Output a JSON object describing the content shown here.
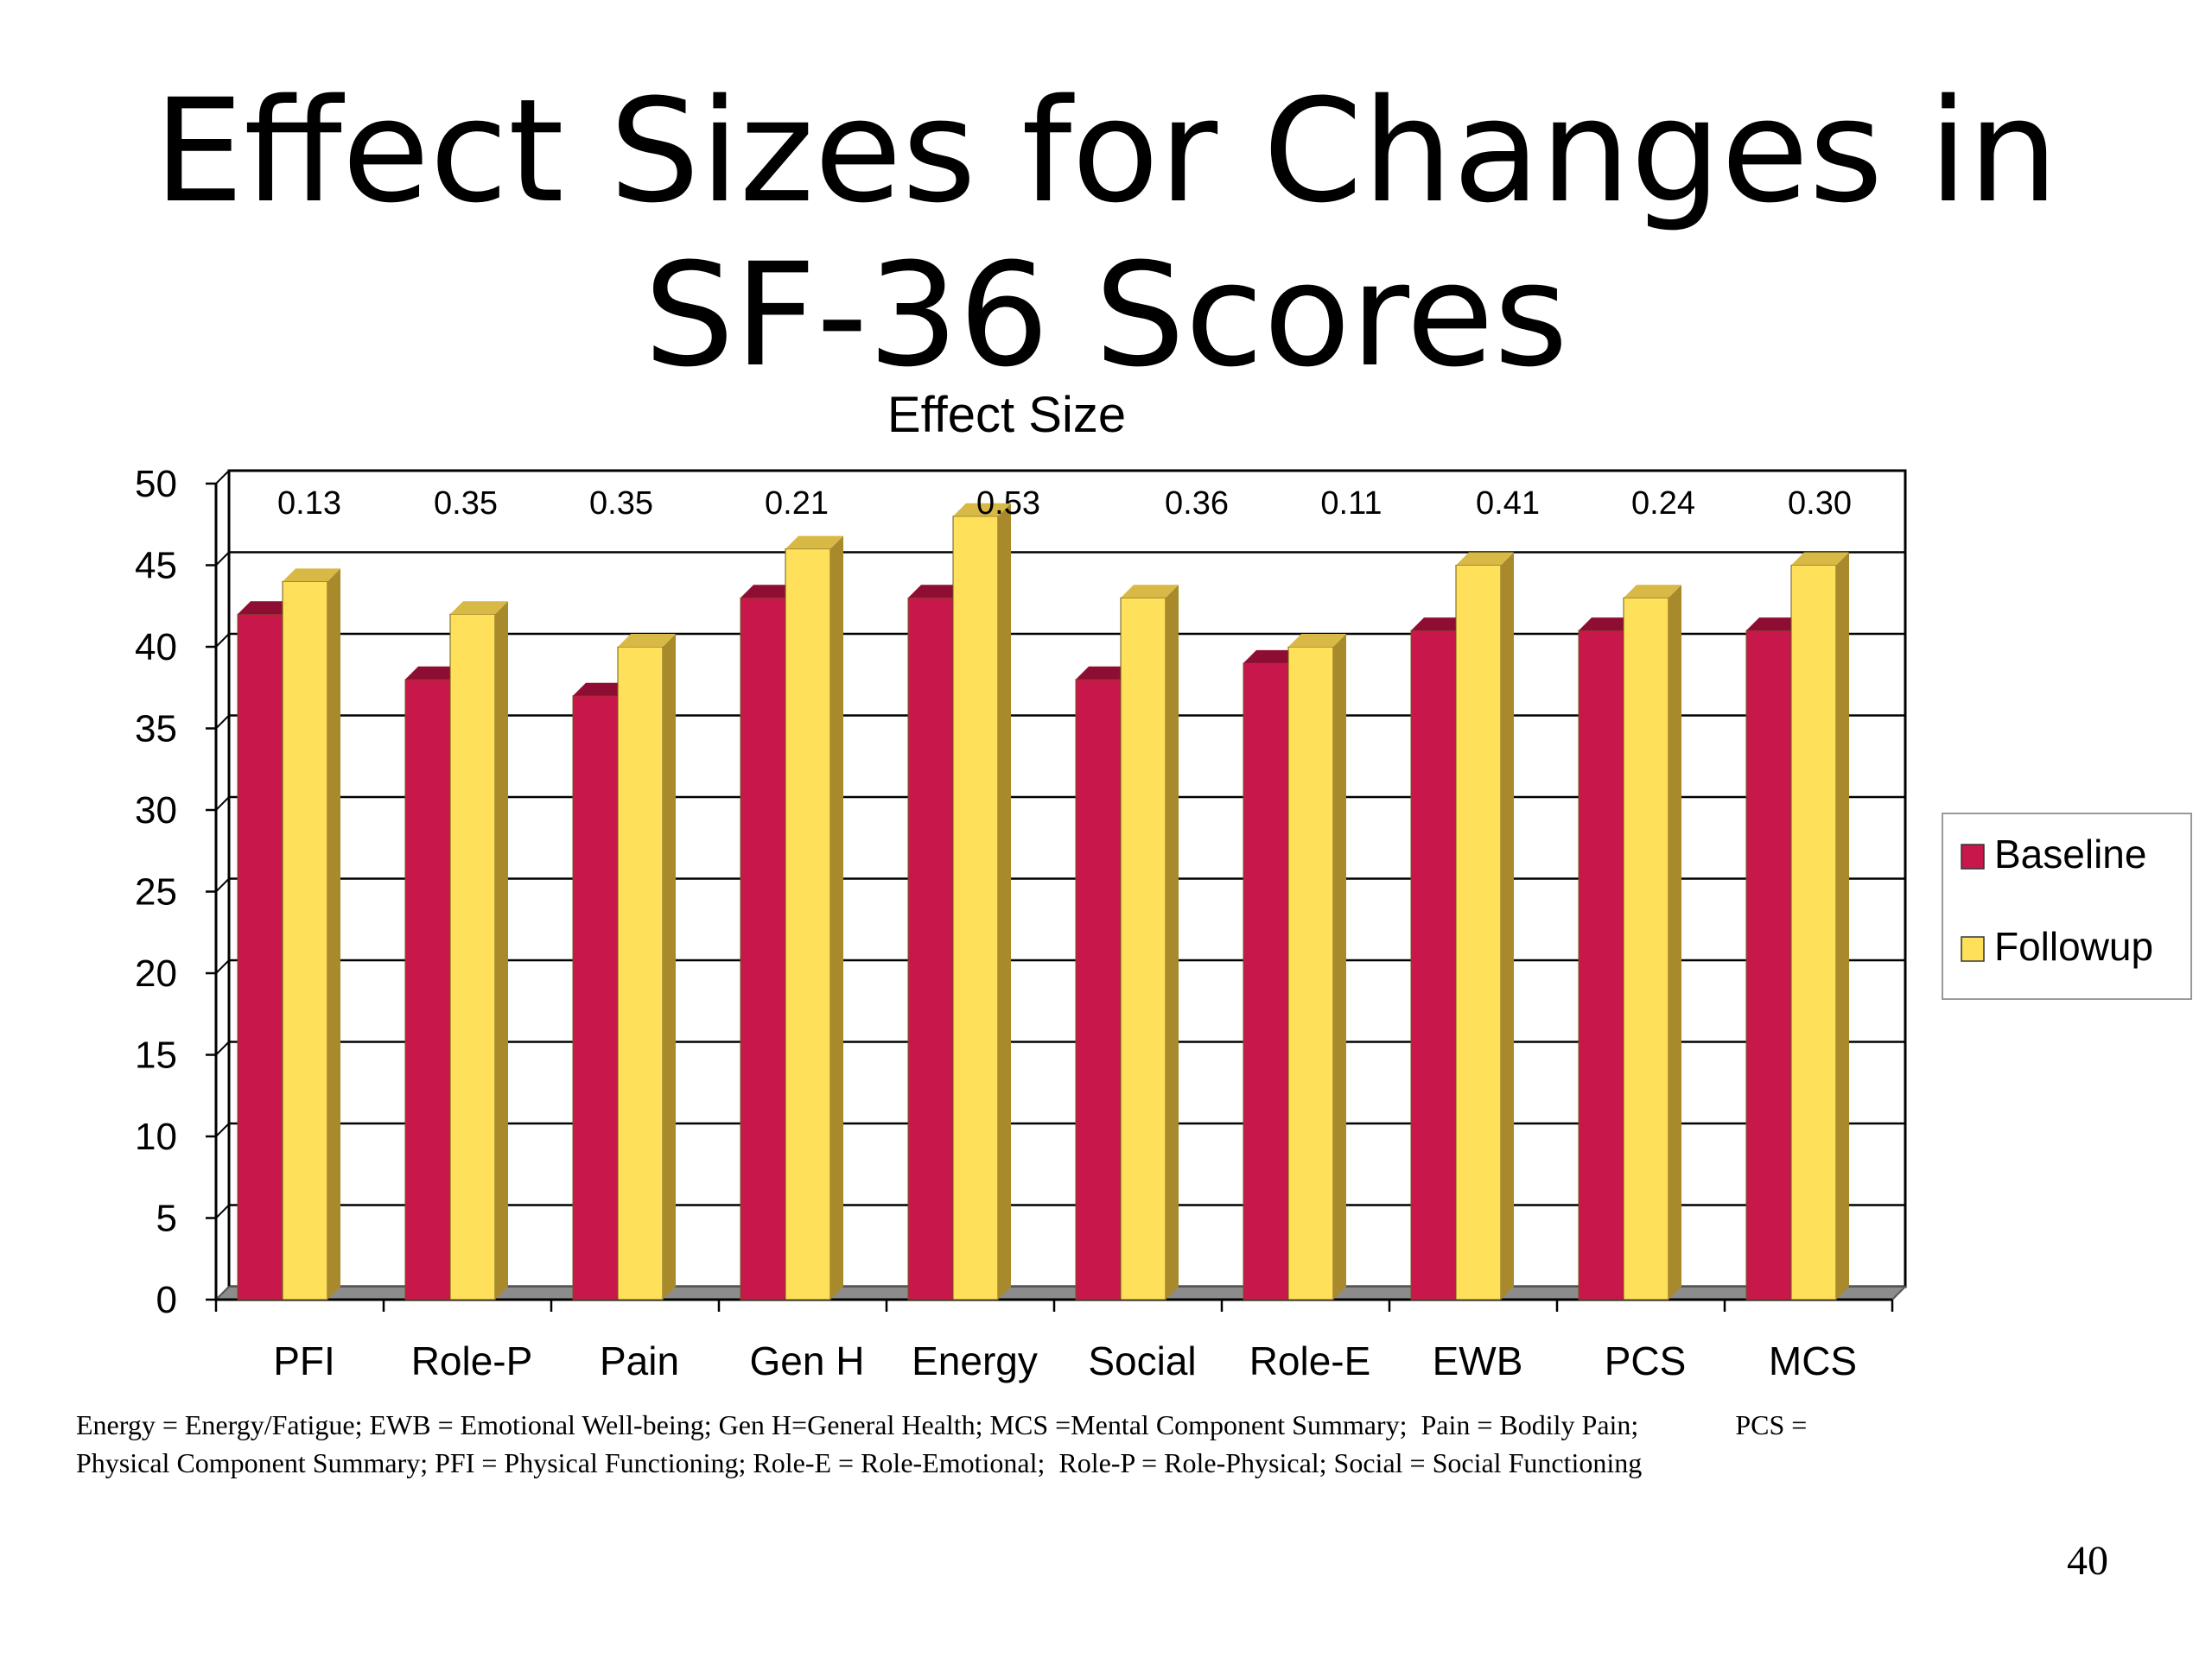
{
  "slide": {
    "title_line1": "Effect Sizes for Changes in",
    "title_line2": "SF-36 Scores",
    "footnote_line1": "Energy = Energy/Fatigue; EWB = Emotional Well-being; Gen H=General Health; MCS =Mental Component Summary;  Pain = Bodily Pain;              PCS =",
    "footnote_line2": "Physical Component Summary; PFI = Physical Functioning; Role-E = Role-Emotional;  Role-P = Role-Physical; Social = Social Functioning",
    "page_number": "40"
  },
  "chart_data": {
    "type": "bar",
    "title": "Effect Size",
    "xlabel": "",
    "ylabel": "",
    "categories": [
      "PFI",
      "Role-P",
      "Pain",
      "Gen H",
      "Energy",
      "Social",
      "Role-E",
      "EWB",
      "PCS",
      "MCS"
    ],
    "series": [
      {
        "name": "Baseline",
        "values": [
          42,
          38,
          37,
          43,
          43,
          38,
          39,
          41,
          41,
          41
        ],
        "color": "#C8174A",
        "top_color": "#8E0E33",
        "side_color": "#8E0E33"
      },
      {
        "name": "Followup",
        "values": [
          44,
          42,
          40,
          46,
          48,
          43,
          40,
          45,
          43,
          45
        ],
        "color": "#FFE05A",
        "top_color": "#D9B945",
        "side_color": "#A8892C"
      }
    ],
    "effect_size_labels": [
      "0.13",
      "0.35",
      "0.35",
      "0.21",
      "0.53",
      "0.36",
      "0.11",
      "0.41",
      "0.24",
      "0.30"
    ],
    "ylim": [
      0,
      50
    ],
    "yticks": [
      0,
      5,
      10,
      15,
      20,
      25,
      30,
      35,
      40,
      45,
      50
    ],
    "grid": true,
    "legend_position": "right",
    "style": "3d-column"
  }
}
